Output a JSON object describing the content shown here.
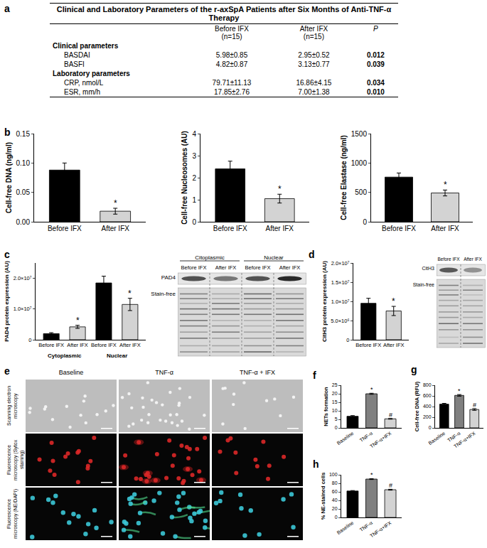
{
  "panels": [
    "a",
    "b",
    "c",
    "d",
    "e",
    "f",
    "g",
    "h"
  ],
  "table": {
    "title": "Clinical and Laboratory Parameters of the r-axSpA Patients after Six Months of Anti-TNF-α Therapy",
    "columns": [
      [
        "Before IFX",
        "(n=15)"
      ],
      [
        "After IFX",
        "(n=15)"
      ],
      [
        "P"
      ]
    ],
    "sections": [
      {
        "title": "Clinical parameters",
        "rows": [
          [
            "BASDAI",
            "5.98±0.85",
            "2.95±0.52",
            "0.012"
          ],
          [
            "BASFI",
            "4.82±0.87",
            "3.13±0.77",
            "0.039"
          ]
        ]
      },
      {
        "title": "Laboratory parameters",
        "rows": [
          [
            "CRP, nmol/L",
            "79.71±11.13",
            "16.86±4.15",
            "0.034"
          ],
          [
            "ESR, mm/h",
            "17.85±2.76",
            "7.00±1.38",
            "0.010"
          ]
        ]
      }
    ]
  },
  "chart_data": [
    {
      "panel": "b",
      "type": "bar",
      "y_label": "Cell-free DNA (ng/ml)",
      "categories": [
        "Before IFX",
        "After IFX"
      ],
      "values": [
        0.088,
        0.018
      ],
      "errors": [
        0.012,
        0.005
      ],
      "significance": [
        null,
        "*"
      ],
      "colors": [
        "#000000",
        "#d3d3d3"
      ],
      "ylim": [
        0,
        0.15
      ],
      "yticks": [
        {
          "value": 0,
          "label": "0.00"
        },
        0.05,
        {
          "value": 0.1,
          "label": "0.10"
        },
        0.15
      ],
      "grid": false
    },
    {
      "panel": "b",
      "type": "bar",
      "y_label": "Cell-free Nucleosomes (AU)",
      "categories": [
        "Before IFX",
        "After IFX"
      ],
      "values": [
        2.4,
        1.05
      ],
      "errors": [
        0.35,
        0.2
      ],
      "significance": [
        null,
        "*"
      ],
      "colors": [
        "#000000",
        "#d3d3d3"
      ],
      "ylim": [
        0,
        4
      ],
      "yticks": [
        0,
        1,
        2,
        3,
        4
      ],
      "grid": false
    },
    {
      "panel": "b",
      "type": "bar",
      "y_label": "Cell-free Elastase (ng/ml)",
      "categories": [
        "Before IFX",
        "After IFX"
      ],
      "values": [
        760,
        490
      ],
      "errors": [
        70,
        50
      ],
      "significance": [
        null,
        "*"
      ],
      "colors": [
        "#000000",
        "#d3d3d3"
      ],
      "ylim": [
        0,
        1500
      ],
      "yticks": [
        0,
        500,
        1000,
        1500
      ],
      "grid": false
    },
    {
      "panel": "c",
      "type": "bar",
      "y_label": "PAD4 protein expression (AU)",
      "categories": [
        "Before IFX",
        "After IFX",
        "Before IFX",
        "After IFX"
      ],
      "groups": [
        "Cytoplasmic",
        "Cytoplasmic",
        "Nuclear",
        "Nuclear"
      ],
      "values": [
        2000000,
        4200000,
        18500000,
        11500000
      ],
      "errors": [
        300000,
        500000,
        2200000,
        2000000
      ],
      "significance": [
        null,
        "*",
        null,
        "*"
      ],
      "colors": [
        "#000000",
        "#d3d3d3",
        "#000000",
        "#d3d3d3"
      ],
      "ylim": [
        0,
        25000000
      ],
      "yticks": [
        0,
        {
          "value": 10000000,
          "label": "1.0×10⁷"
        },
        {
          "value": 20000000,
          "label": "2.0×10⁷"
        }
      ],
      "grid": false
    },
    {
      "panel": "d",
      "type": "bar",
      "y_label": "CitH3 protein expression (AU)",
      "categories": [
        "Before IFX",
        "After IFX"
      ],
      "values": [
        9500000,
        7500000
      ],
      "errors": [
        1300000,
        1200000
      ],
      "significance": [
        null,
        "*"
      ],
      "colors": [
        "#000000",
        "#d3d3d3"
      ],
      "ylim": [
        0,
        20000000
      ],
      "yticks": [
        0,
        {
          "value": 5000000,
          "label": "5.0×10⁶"
        },
        {
          "value": 10000000,
          "label": "1.0×10⁷"
        },
        {
          "value": 15000000,
          "label": "1.5×10⁷"
        },
        {
          "value": 20000000,
          "label": "2.0×10⁷"
        }
      ],
      "grid": false
    },
    {
      "panel": "f",
      "type": "bar",
      "y_label": "NETs formation",
      "categories": [
        "Baseline",
        "TNF-α",
        "TNF-α+IFX"
      ],
      "values": [
        6.8,
        20,
        5.3
      ],
      "errors": [
        0.4,
        0.3,
        0.2
      ],
      "significance": [
        null,
        "*",
        "#"
      ],
      "colors": [
        "#000000",
        "#808080",
        "#d3d3d3"
      ],
      "ylim": [
        0,
        25
      ],
      "yticks": [
        0,
        5,
        10,
        15,
        20,
        25
      ],
      "grid": false
    },
    {
      "panel": "g",
      "type": "bar",
      "y_label": "Cell-free DNA (RFU)",
      "categories": [
        "Baseline",
        "TNF-α",
        "TNF-α+IFX"
      ],
      "values": [
        445,
        610,
        345
      ],
      "errors": [
        15,
        15,
        15
      ],
      "significance": [
        null,
        "*",
        "#"
      ],
      "colors": [
        "#000000",
        "#808080",
        "#d3d3d3"
      ],
      "ylim": [
        0,
        800
      ],
      "yticks": [
        0,
        200,
        400,
        600,
        800
      ],
      "grid": false
    },
    {
      "panel": "h",
      "type": "bar",
      "y_label": "% NE-stained cells",
      "categories": [
        "Baseline",
        "TNF-α",
        "TNF-α+IFX"
      ],
      "values": [
        62,
        90,
        65
      ],
      "errors": [
        1,
        1,
        1
      ],
      "significance": [
        null,
        "*",
        "#"
      ],
      "colors": [
        "#000000",
        "#808080",
        "#d3d3d3"
      ],
      "ylim": [
        0,
        100
      ],
      "yticks": [
        0,
        20,
        40,
        60,
        80,
        100
      ],
      "grid": false
    }
  ],
  "blots": [
    {
      "panel": "c",
      "columns": [
        {
          "label": "Citoplasmic",
          "lanes": [
            "Before IFX",
            "After IFX"
          ]
        },
        {
          "label": "Nuclear",
          "lanes": [
            "Before IFX",
            "After IFX"
          ]
        }
      ],
      "rows": [
        "PAD4",
        "Stain-free"
      ]
    },
    {
      "panel": "d",
      "columns": [
        {
          "lanes": [
            "Before IFX",
            "After IFX"
          ]
        }
      ],
      "rows": [
        "CitH3",
        "Stain-free"
      ]
    }
  ],
  "micrographs": {
    "panel": "e",
    "columns": [
      "Baseline",
      "TNF-α",
      "TNF-α + IFX"
    ],
    "rows": [
      "Scanning electron microscopy",
      "Fluorescence microscopy (Sytox staining)",
      "Fluorescence microscopy (NE/DAPI)"
    ]
  }
}
